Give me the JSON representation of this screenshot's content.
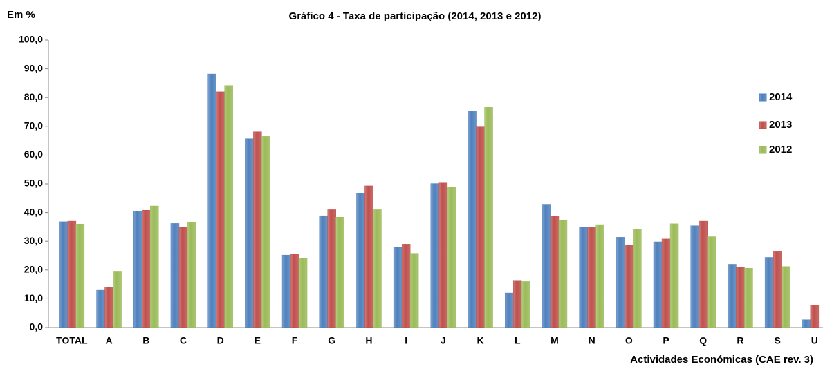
{
  "chart_data": {
    "type": "bar",
    "title": "Gráfico 4 - Taxa de participação  (2014, 2013 e 2012)",
    "y_label": "Em %",
    "x_label": "Actividades Económicas (CAE rev. 3)",
    "categories": [
      "TOTAL",
      "A",
      "B",
      "C",
      "D",
      "E",
      "F",
      "G",
      "H",
      "I",
      "J",
      "K",
      "L",
      "M",
      "N",
      "O",
      "P",
      "Q",
      "R",
      "S",
      "U"
    ],
    "series": [
      {
        "name": "2014",
        "color": "#4f81bd",
        "values": [
          36.8,
          13.2,
          40.5,
          36.2,
          88.2,
          65.7,
          25.2,
          38.9,
          46.7,
          27.9,
          50.1,
          75.3,
          12.0,
          42.9,
          34.8,
          31.4,
          29.8,
          35.4,
          22.0,
          24.4,
          2.7
        ]
      },
      {
        "name": "2013",
        "color": "#c0504d",
        "values": [
          37.0,
          14.0,
          40.8,
          34.8,
          82.0,
          68.1,
          25.5,
          41.0,
          49.3,
          29.0,
          50.3,
          69.8,
          16.4,
          38.8,
          35.0,
          28.7,
          30.8,
          37.0,
          20.9,
          26.6,
          7.8
        ]
      },
      {
        "name": "2012",
        "color": "#9bbb59",
        "values": [
          36.0,
          19.6,
          42.3,
          36.7,
          84.2,
          66.5,
          24.2,
          38.4,
          41.0,
          25.8,
          48.9,
          76.6,
          16.0,
          37.2,
          35.8,
          34.3,
          36.1,
          31.6,
          20.6,
          21.2,
          null
        ]
      }
    ],
    "ylim": [
      0,
      100
    ],
    "yticks": [
      {
        "value": 0,
        "label": "0,0"
      },
      {
        "value": 10,
        "label": "10,0"
      },
      {
        "value": 20,
        "label": "20,0"
      },
      {
        "value": 30,
        "label": "30,0"
      },
      {
        "value": 40,
        "label": "40,0"
      },
      {
        "value": 50,
        "label": "50,0"
      },
      {
        "value": 60,
        "label": "60,0"
      },
      {
        "value": 70,
        "label": "70,0"
      },
      {
        "value": 80,
        "label": "80,0"
      },
      {
        "value": 90,
        "label": "90,0"
      },
      {
        "value": 100,
        "label": "100,0"
      }
    ],
    "legend": "right"
  }
}
